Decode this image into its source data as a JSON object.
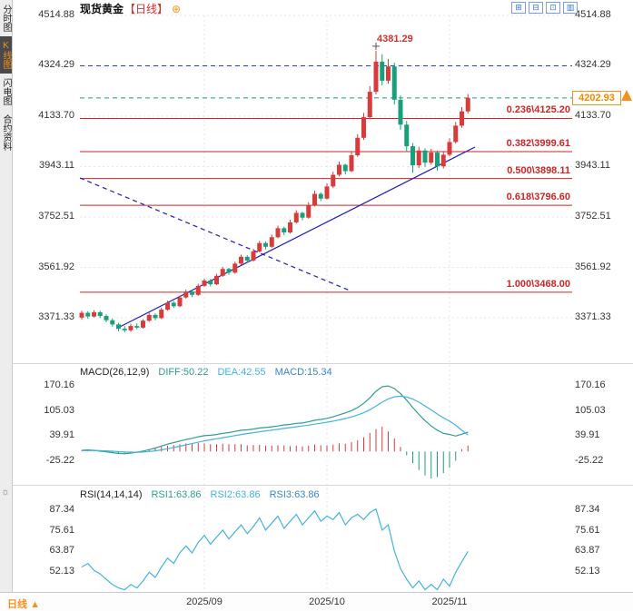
{
  "sidebar": {
    "tabs": [
      {
        "label": "分时图",
        "active": false
      },
      {
        "label": "K线图",
        "active": true
      },
      {
        "label": "闪电图",
        "active": false
      },
      {
        "label": "合约资料",
        "active": false
      }
    ],
    "settings_icon": "☼"
  },
  "header": {
    "symbol": "现货黄金",
    "period": "【日线】",
    "plus_icon": "⊕",
    "layout_icons": [
      {
        "name": "layout-grid-icon",
        "glyph": "⊞"
      },
      {
        "name": "layout-split-icon",
        "glyph": "⊟"
      },
      {
        "name": "layout-single-icon",
        "glyph": "⊡"
      },
      {
        "name": "layout-columns-icon",
        "glyph": "▥"
      }
    ]
  },
  "price_axis": {
    "labels": [
      "4514.88",
      "4324.29",
      "4133.70",
      "3943.11",
      "3752.51",
      "3561.92",
      "3371.33"
    ]
  },
  "macd_axis": {
    "labels": [
      "170.16",
      "105.03",
      "39.91",
      "-25.22"
    ]
  },
  "rsi_axis": {
    "labels": [
      "87.34",
      "75.61",
      "63.87",
      "52.13"
    ]
  },
  "x_axis": {
    "labels": [
      "2025/09",
      "2025/10",
      "2025/11"
    ],
    "period_label": "日线",
    "period_arrow": "▲"
  },
  "price_marker": {
    "value": "4202.93"
  },
  "peak_annotation": {
    "value": "4381.29"
  },
  "macd_header": {
    "title": "MACD(26,12,9)",
    "diff": "DIFF:50.22",
    "dea": "DEA:42.55",
    "macd": "MACD:15.34"
  },
  "rsi_header": {
    "title": "RSI(14,14,14)",
    "rsi1": "RSI1:63.86",
    "rsi2": "RSI2:63.86",
    "rsi3": "RSI3:63.86"
  },
  "colors": {
    "up": "#d93a3a",
    "down": "#18a07a",
    "accent_orange": "#f5921e",
    "fib_red": "#cc2626",
    "trend_blue": "#1d1db8",
    "resistance_blue": "#2c3ec4",
    "last_price_teal": "#1a9a86",
    "diff_teal": "#2e9e8f",
    "dea_cyan": "#45b3e0",
    "macd_blue": "#3a86c8"
  },
  "chart_data": {
    "type": "candlestick",
    "title": "现货黄金【日线】",
    "price_panel": {
      "y_tick_labels": [
        "4514.88",
        "4324.29",
        "4133.70",
        "3943.11",
        "3752.51",
        "3561.92",
        "3371.33"
      ],
      "ylim": [
        3280,
        4560
      ],
      "candles": {
        "open": [
          3372,
          3390,
          3376,
          3392,
          3378,
          3362,
          3346,
          3330,
          3324,
          3340,
          3334,
          3360,
          3382,
          3370,
          3402,
          3428,
          3415,
          3448,
          3470,
          3458,
          3492,
          3512,
          3498,
          3530,
          3556,
          3542,
          3576,
          3602,
          3588,
          3622,
          3654,
          3640,
          3676,
          3710,
          3694,
          3732,
          3768,
          3750,
          3796,
          3840,
          3822,
          3868,
          3912,
          3950,
          3926,
          3986,
          4052,
          4130,
          4226,
          4340,
          4268,
          4322,
          4196,
          4102,
          4020,
          3948,
          4004,
          3958,
          3996,
          3944,
          3988,
          4036,
          4098,
          4152
        ],
        "close": [
          3390,
          3376,
          3392,
          3378,
          3362,
          3346,
          3330,
          3324,
          3340,
          3334,
          3360,
          3382,
          3370,
          3402,
          3428,
          3415,
          3448,
          3470,
          3458,
          3492,
          3512,
          3498,
          3530,
          3556,
          3542,
          3576,
          3602,
          3588,
          3622,
          3654,
          3640,
          3676,
          3710,
          3694,
          3732,
          3768,
          3750,
          3796,
          3840,
          3822,
          3868,
          3912,
          3950,
          3926,
          3986,
          4052,
          4130,
          4226,
          4340,
          4268,
          4322,
          4196,
          4102,
          4020,
          3948,
          4004,
          3958,
          3996,
          3944,
          3988,
          4036,
          4098,
          4152,
          4202.93
        ],
        "high": [
          3398,
          3396,
          3400,
          3398,
          3384,
          3368,
          3352,
          3340,
          3348,
          3350,
          3366,
          3390,
          3388,
          3410,
          3436,
          3434,
          3456,
          3478,
          3476,
          3500,
          3520,
          3518,
          3538,
          3564,
          3560,
          3584,
          3610,
          3608,
          3632,
          3662,
          3660,
          3686,
          3720,
          3716,
          3742,
          3778,
          3772,
          3808,
          3852,
          3846,
          3880,
          3924,
          3962,
          3954,
          4000,
          4066,
          4146,
          4248,
          4381.29,
          4368,
          4350,
          4336,
          4212,
          4116,
          4032,
          4018,
          4012,
          4010,
          4004,
          4000,
          4050,
          4112,
          4168,
          4218
        ],
        "low": [
          3364,
          3368,
          3372,
          3370,
          3354,
          3338,
          3320,
          3316,
          3318,
          3328,
          3330,
          3356,
          3362,
          3366,
          3398,
          3408,
          3412,
          3444,
          3450,
          3454,
          3488,
          3490,
          3494,
          3526,
          3534,
          3538,
          3572,
          3580,
          3584,
          3618,
          3630,
          3636,
          3672,
          3684,
          3690,
          3728,
          3740,
          3746,
          3792,
          3812,
          3818,
          3862,
          3906,
          3914,
          3922,
          3980,
          4044,
          4122,
          4216,
          4250,
          4256,
          4178,
          4082,
          3998,
          3920,
          3938,
          3942,
          3950,
          3928,
          3936,
          3982,
          4030,
          4090,
          4144
        ]
      },
      "peak": {
        "index": 48,
        "price": 4381.29
      },
      "last_price": 4202.93,
      "resistance_level": 4324.29,
      "fib_levels": [
        {
          "ratio": "0.236",
          "price": 4125.2,
          "label": "0.236\\4125.20"
        },
        {
          "ratio": "0.382",
          "price": 3999.61,
          "label": "0.382\\3999.61"
        },
        {
          "ratio": "0.500",
          "price": 3898.11,
          "label": "0.500\\3898.11"
        },
        {
          "ratio": "0.618",
          "price": 3796.6,
          "label": "0.618\\3796.60"
        },
        {
          "ratio": "1.000",
          "price": 3468.0,
          "label": "1.000\\3468.00"
        }
      ],
      "trendlines": [
        {
          "style": "solid",
          "from": [
            128,
            362
          ],
          "to": [
            523,
            162
          ]
        },
        {
          "style": "dashed",
          "from": [
            88,
            196
          ],
          "to": [
            385,
            320
          ]
        }
      ]
    },
    "x_axis": {
      "month_labels": [
        "2025/09",
        "2025/10",
        "2025/11"
      ],
      "month_indices": [
        20,
        40,
        60
      ]
    },
    "macd_panel": {
      "params": "(26,12,9)",
      "y_tick_labels": [
        "170.16",
        "105.03",
        "39.91",
        "-25.22"
      ],
      "last": {
        "diff": 50.22,
        "dea": 42.55,
        "macd": 15.34
      },
      "diff": [
        3,
        4,
        3,
        1,
        -1,
        -3,
        -5,
        -6,
        -4,
        -2,
        1,
        5,
        9,
        14,
        19,
        23,
        27,
        31,
        34,
        38,
        41,
        42,
        44,
        47,
        49,
        52,
        55,
        56,
        58,
        61,
        62,
        64,
        66,
        69,
        70,
        73,
        74,
        77,
        81,
        83,
        86,
        90,
        95,
        100,
        106,
        114,
        125,
        139,
        156,
        168,
        170,
        163,
        150,
        133,
        114,
        96,
        80,
        66,
        55,
        47,
        44,
        40,
        45,
        50.22
      ],
      "dea": [
        2,
        2.4,
        2.5,
        2.2,
        1.6,
        0.7,
        -0.4,
        -1.5,
        -2,
        -2,
        -1.4,
        -0.1,
        1.7,
        4.2,
        7.1,
        10.3,
        13.6,
        17.1,
        20.5,
        24,
        27.4,
        30.3,
        33,
        35.8,
        38.4,
        41.1,
        43.9,
        46.3,
        48.6,
        51.1,
        53.3,
        55.4,
        57.5,
        59.8,
        61.9,
        64.1,
        66.1,
        68.3,
        70.8,
        73.2,
        75.8,
        78.6,
        81.9,
        85.5,
        89.6,
        94.5,
        100.6,
        108.3,
        117.8,
        127.9,
        136.3,
        141.6,
        143.3,
        141.2,
        135.8,
        127.8,
        118.2,
        107.8,
        97.2,
        87.2,
        78.5,
        68,
        55,
        42.55
      ],
      "hist": [
        2,
        3,
        1,
        -1,
        -2,
        -4,
        -6,
        -6,
        -4,
        -2,
        1,
        6,
        9,
        12,
        15,
        17,
        19,
        21,
        21,
        22,
        21,
        19,
        19,
        20,
        19,
        19,
        19,
        16,
        17,
        17,
        15,
        15,
        16,
        16,
        14,
        15,
        13,
        15,
        18,
        16,
        16,
        18,
        21,
        20,
        24,
        29,
        37,
        48,
        58,
        64,
        52,
        34,
        12,
        -10,
        -30,
        -48,
        -62,
        -70,
        -66,
        -56,
        -42,
        -24,
        6,
        15.34
      ]
    },
    "rsi_panel": {
      "params": "(14,14,14)",
      "y_tick_labels": [
        "87.34",
        "75.61",
        "63.87",
        "52.13"
      ],
      "last": 63.86,
      "values": [
        55,
        57,
        53,
        51,
        48,
        45,
        43,
        42,
        45,
        43,
        47,
        52,
        49,
        55,
        60,
        57,
        63,
        67,
        63,
        69,
        73,
        68,
        72,
        76,
        71,
        75,
        79,
        74,
        78,
        83,
        76,
        80,
        84,
        77,
        81,
        85,
        79,
        83,
        87,
        81,
        84,
        82,
        86,
        79,
        83,
        85,
        82,
        86,
        88,
        76,
        79,
        64,
        54,
        48,
        43,
        47,
        42,
        45,
        42,
        48,
        44,
        52,
        58,
        63.86
      ]
    }
  }
}
